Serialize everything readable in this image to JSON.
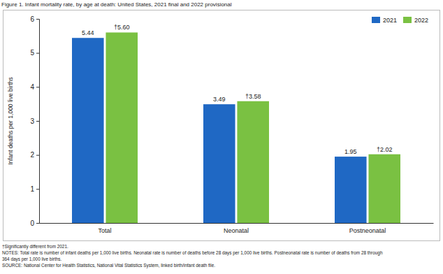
{
  "chart_data": {
    "type": "bar",
    "title": "Figure 1. Infant mortality rate, by age at death: United States, 2021 final and 2022 provisional",
    "y_label": "Infant deaths per 1,000 live births",
    "categories": [
      "Total",
      "Neonatal",
      "Postneonatal"
    ],
    "series": [
      {
        "name": "2021",
        "color": "#1f68c4",
        "values": [
          5.44,
          3.49,
          1.95
        ]
      },
      {
        "name": "2022",
        "color": "#7ac142",
        "values": [
          5.6,
          3.58,
          2.02
        ],
        "value_labels": [
          "†5.60",
          "†3.58",
          "†2.02"
        ]
      }
    ],
    "ylim": [
      0,
      6
    ],
    "yticks": [
      0,
      1,
      2,
      3,
      4,
      5,
      6
    ],
    "grid": false,
    "legend": "upper right",
    "data_labels": true,
    "annotations": [
      "†Significantly different from 2021.",
      "NOTES: Total rate is number of infant deaths per 1,000 live births. Neonatal rate is number of deaths before 28 days per 1,000 live births. Postneonatal rate is number of deaths from 28 through",
      "364 days per 1,000 live births.",
      "SOURCE: National Center for Health Statistics, National Vital Statistics System, linked birth/infant death file."
    ]
  }
}
